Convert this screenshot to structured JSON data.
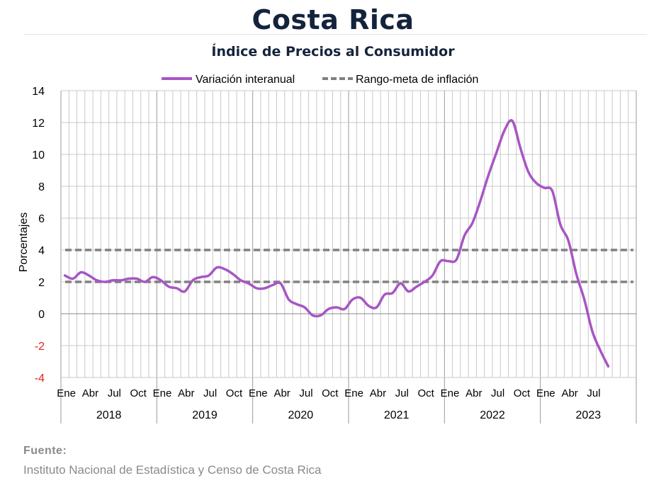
{
  "page": {
    "title": "Costa Rica",
    "subtitle": "Índice de Precios al Consumidor",
    "source_label": "Fuente:",
    "source_text": "Instituto Nacional de Estadística y Censo de Costa Rica"
  },
  "chart_data": {
    "type": "line",
    "title": "Índice de Precios al Consumidor",
    "ylabel": "Porcentajes",
    "ylim": [
      -4,
      14
    ],
    "yticks": [
      -4,
      -2,
      0,
      2,
      4,
      6,
      8,
      10,
      12,
      14
    ],
    "grid": true,
    "legend_position": "top",
    "years": [
      "2018",
      "2019",
      "2020",
      "2021",
      "2022",
      "2023"
    ],
    "month_tick_labels": [
      "Ene",
      "Abr",
      "Jul",
      "Oct"
    ],
    "x_start": "2018-01",
    "x_end": "2023-08",
    "series": [
      {
        "name": "Variación interanual",
        "color": "#a855c4",
        "style": "solid",
        "values": [
          2.4,
          2.2,
          2.6,
          2.4,
          2.1,
          2.0,
          2.1,
          2.1,
          2.2,
          2.2,
          2.0,
          2.3,
          2.1,
          1.7,
          1.6,
          1.4,
          2.1,
          2.3,
          2.4,
          2.9,
          2.8,
          2.5,
          2.1,
          1.9,
          1.6,
          1.6,
          1.8,
          1.9,
          0.9,
          0.6,
          0.4,
          -0.1,
          -0.1,
          0.3,
          0.4,
          0.3,
          0.9,
          1.0,
          0.5,
          0.4,
          1.2,
          1.3,
          1.9,
          1.4,
          1.7,
          2.0,
          2.4,
          3.3,
          3.3,
          3.4,
          4.9,
          5.7,
          7.1,
          8.7,
          10.1,
          11.5,
          12.1,
          10.4,
          8.9,
          8.2,
          7.9,
          7.7,
          5.6,
          4.6,
          2.5,
          0.9,
          -1.1,
          -2.3,
          -3.3
        ]
      },
      {
        "name": "Rango-meta de inflación",
        "color": "#808080",
        "style": "dashed",
        "values_upper": 4,
        "values_lower": 2
      }
    ]
  }
}
